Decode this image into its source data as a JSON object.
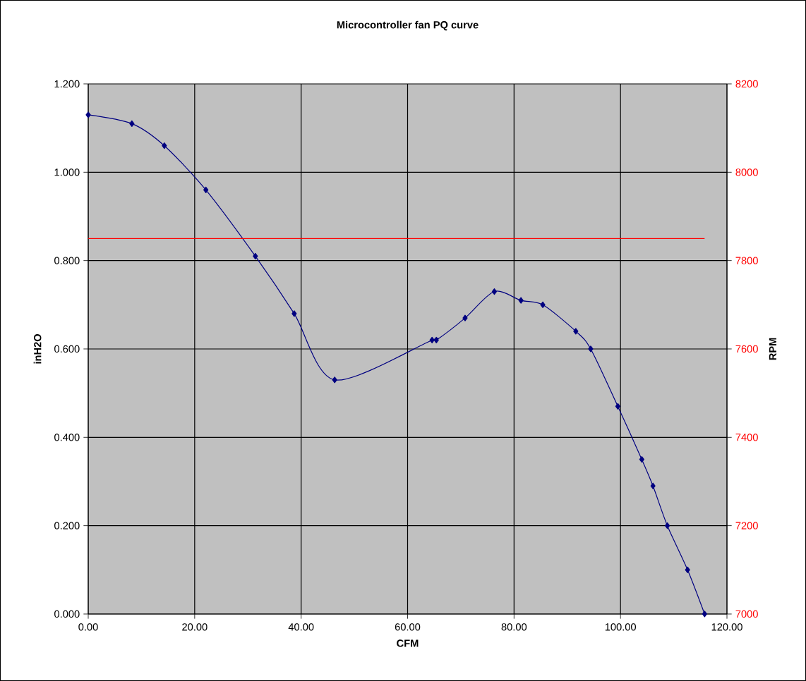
{
  "chart_data": {
    "type": "line",
    "title": "Microcontroller fan PQ curve",
    "xlabel": "CFM",
    "ylabel": "inH2O",
    "y2label": "RPM",
    "xlim": [
      0,
      120
    ],
    "ylim": [
      0,
      1.2
    ],
    "y2lim": [
      7000,
      8200
    ],
    "xticks": [
      {
        "value": 0,
        "label": "0.00"
      },
      {
        "value": 20,
        "label": "20.00"
      },
      {
        "value": 40,
        "label": "40.00"
      },
      {
        "value": 60,
        "label": "60.00"
      },
      {
        "value": 80,
        "label": "80.00"
      },
      {
        "value": 100,
        "label": "100.00"
      },
      {
        "value": 120,
        "label": "120.00"
      }
    ],
    "yticks": [
      {
        "value": 0,
        "label": "0.000"
      },
      {
        "value": 0.2,
        "label": "0.200"
      },
      {
        "value": 0.4,
        "label": "0.400"
      },
      {
        "value": 0.6,
        "label": "0.600"
      },
      {
        "value": 0.8,
        "label": "0.800"
      },
      {
        "value": 1.0,
        "label": "1.000"
      },
      {
        "value": 1.2,
        "label": "1.200"
      }
    ],
    "y2ticks": [
      7000,
      7200,
      7400,
      7600,
      7800,
      8000,
      8200
    ],
    "grid": true,
    "series": [
      {
        "color": "#000080",
        "marker": "diamond",
        "x": [
          0,
          8.2,
          14.3,
          22.1,
          31.4,
          38.7,
          46.3,
          64.6,
          65.4,
          70.8,
          76.3,
          81.3,
          85.4,
          91.6,
          94.4,
          99.5,
          104.0,
          106.1,
          108.8,
          112.6,
          115.8
        ],
        "values": [
          1.13,
          1.11,
          1.06,
          0.96,
          0.81,
          0.68,
          0.53,
          0.62,
          0.62,
          0.67,
          0.73,
          0.71,
          0.7,
          0.64,
          0.6,
          0.47,
          0.35,
          0.29,
          0.2,
          0.1,
          0.0
        ]
      },
      {
        "color": "#ff0000",
        "marker": "none",
        "axis": "y2",
        "x": [
          0,
          115.8
        ],
        "values": [
          7850,
          7850
        ]
      }
    ]
  }
}
